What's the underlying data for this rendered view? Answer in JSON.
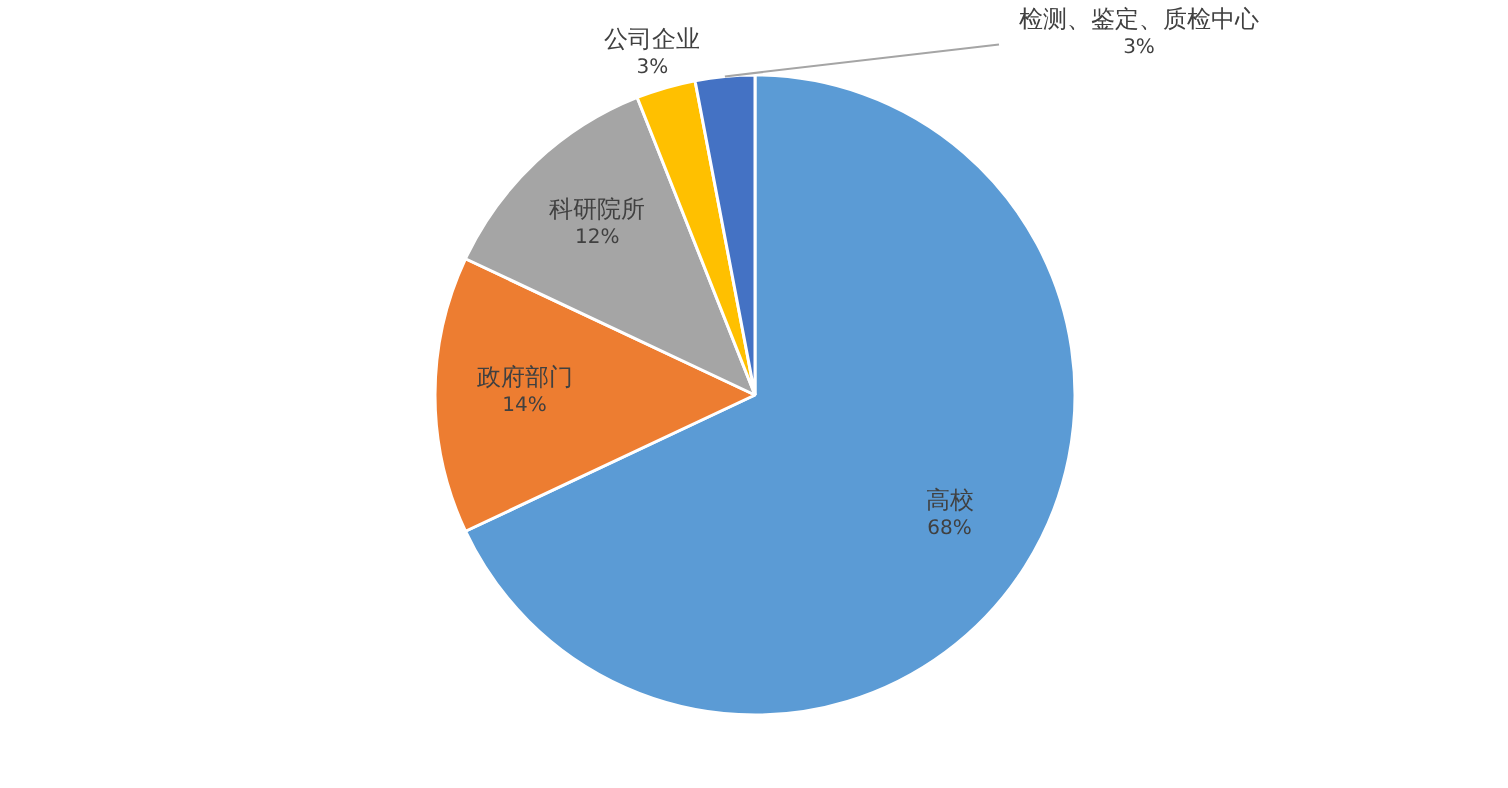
{
  "chart_data": {
    "type": "pie",
    "categories": [
      "高校",
      "政府部门",
      "科研院所",
      "公司企业",
      "检测、鉴定、质检中心"
    ],
    "values": [
      68,
      14,
      12,
      3,
      3
    ],
    "value_labels": [
      "68%",
      "14%",
      "12%",
      "3%",
      "3%"
    ],
    "colors": [
      "#5b9bd5",
      "#ed7d31",
      "#a5a5a5",
      "#ffc000",
      "#4472c4"
    ]
  }
}
